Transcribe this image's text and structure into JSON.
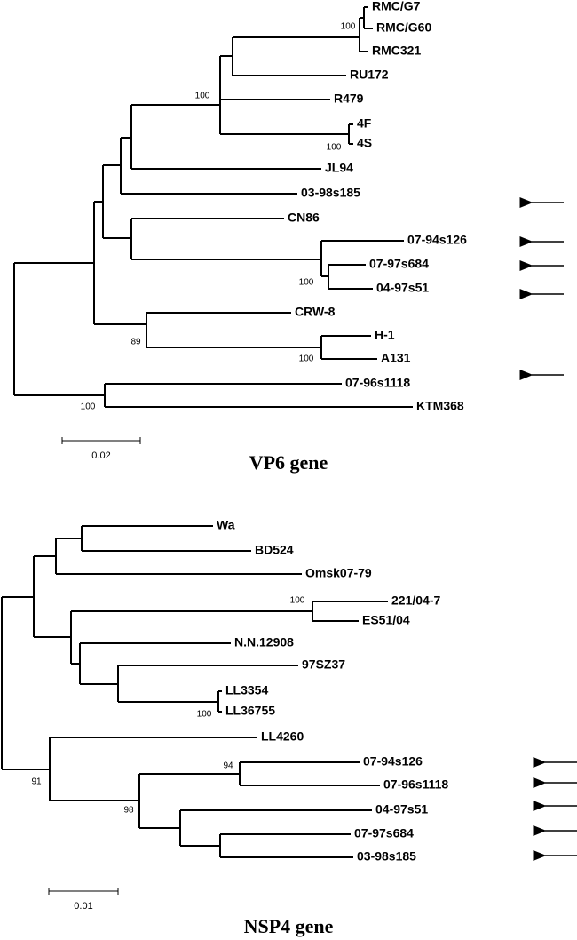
{
  "trees": [
    {
      "title": "VP6 gene",
      "scale": "0.02",
      "leaves": [
        "RMC/G7",
        "RMC/G60",
        "RMC321",
        "RU172",
        "R479",
        "4F",
        "4S",
        "JL94",
        "03-98s185",
        "CN86",
        "07-94s126",
        "07-97s684",
        "04-97s51",
        "CRW-8",
        "H-1",
        "A131",
        "07-96s1118",
        "KTM368"
      ],
      "bootstraps": [
        "100",
        "100",
        "100",
        "100",
        "89",
        "100",
        "100"
      ]
    },
    {
      "title": "NSP4 gene",
      "scale": "0.01",
      "leaves": [
        "Wa",
        "BD524",
        "Omsk07-79",
        "221/04-7",
        "ES51/04",
        "N.N.12908",
        "97SZ37",
        "LL3354",
        "LL36755",
        "LL4260",
        "07-94s126",
        "07-96s1118",
        "04-97s51",
        "07-97s684",
        "03-98s185"
      ],
      "bootstraps": [
        "100",
        "100",
        "94",
        "98",
        "91"
      ]
    }
  ]
}
